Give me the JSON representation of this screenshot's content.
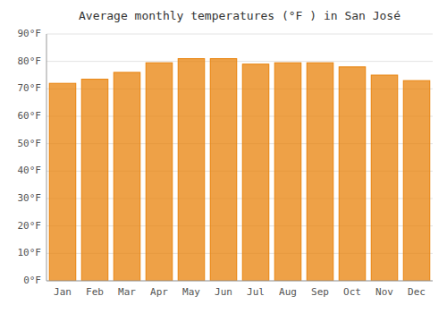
{
  "chart_data": {
    "type": "bar",
    "title": "Average monthly temperatures (°F ) in San José",
    "categories": [
      "Jan",
      "Feb",
      "Mar",
      "Apr",
      "May",
      "Jun",
      "Jul",
      "Aug",
      "Sep",
      "Oct",
      "Nov",
      "Dec"
    ],
    "values": [
      72,
      73.5,
      76,
      79.5,
      81,
      81,
      79,
      79.5,
      79.5,
      78,
      75,
      73
    ],
    "color": "#E8820A",
    "ylim": [
      0,
      90
    ],
    "yticks": [
      {
        "value": 0,
        "label": "0°F"
      },
      {
        "value": 10,
        "label": "10°F"
      },
      {
        "value": 20,
        "label": "20°F"
      },
      {
        "value": 30,
        "label": "30°F"
      },
      {
        "value": 40,
        "label": "40°F"
      },
      {
        "value": 50,
        "label": "50°F"
      },
      {
        "value": 60,
        "label": "60°F"
      },
      {
        "value": 70,
        "label": "70°F"
      },
      {
        "value": 80,
        "label": "80°F"
      },
      {
        "value": 90,
        "label": "90°F"
      }
    ],
    "grid": true
  }
}
